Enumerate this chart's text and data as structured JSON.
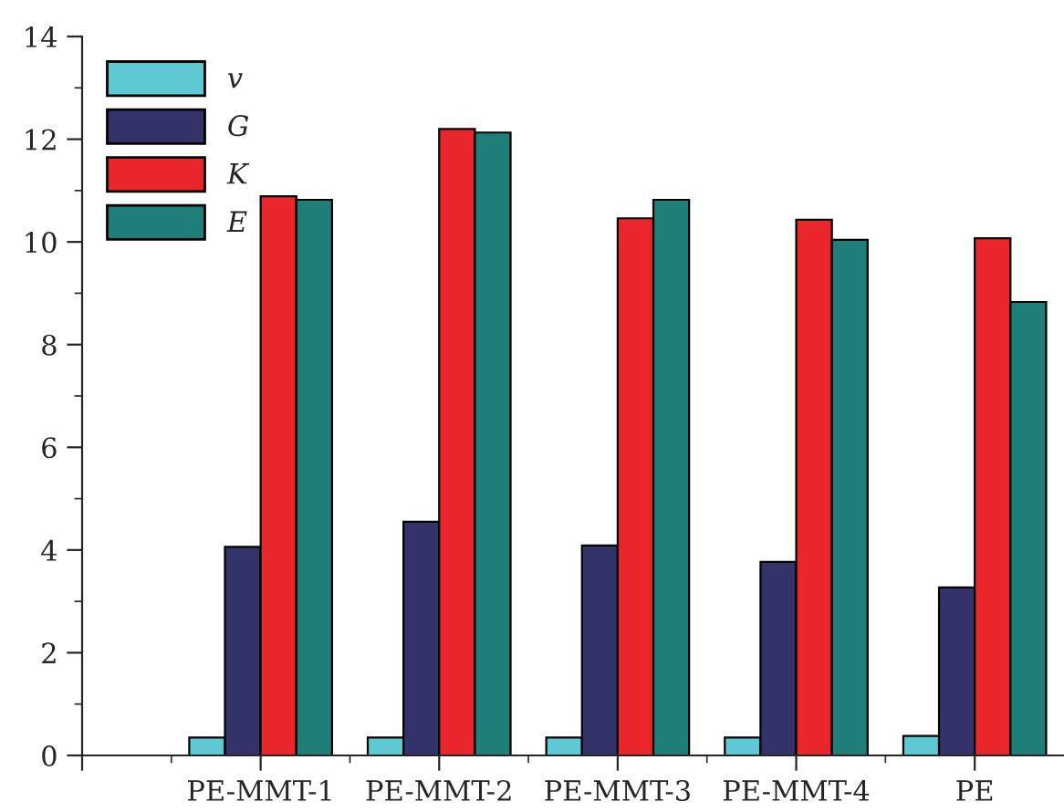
{
  "chart_data": {
    "type": "bar",
    "categories": [
      null,
      "PE-MMT-1",
      "PE-MMT-2",
      "PE-MMT-3",
      "PE-MMT-4",
      "PE"
    ],
    "series": [
      {
        "name": "v",
        "color": "#5fc9d3",
        "values": [
          null,
          0.35,
          0.35,
          0.35,
          0.35,
          0.38
        ]
      },
      {
        "name": "G",
        "color": "#33336a",
        "values": [
          null,
          4.06,
          4.55,
          4.09,
          3.77,
          3.27
        ]
      },
      {
        "name": "K",
        "color": "#e8262b",
        "values": [
          null,
          10.89,
          12.2,
          10.46,
          10.43,
          10.07
        ]
      },
      {
        "name": "E",
        "color": "#1f7f78",
        "values": [
          null,
          10.82,
          12.13,
          10.82,
          10.04,
          8.83
        ]
      }
    ],
    "ylim": [
      0,
      14
    ],
    "yticks": [
      0,
      2,
      4,
      6,
      8,
      10,
      12,
      14
    ],
    "grid": false,
    "legend": "top left"
  }
}
